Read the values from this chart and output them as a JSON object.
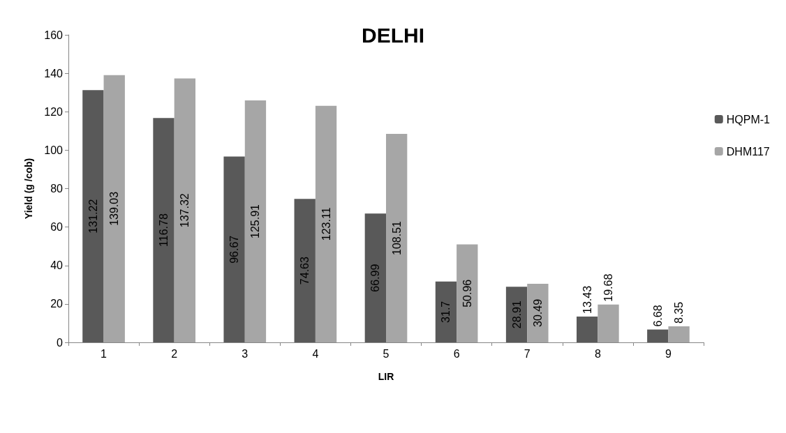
{
  "chart_data": {
    "type": "bar",
    "title": "DELHI",
    "xlabel": "LIR",
    "ylabel": "Yield (g /cob)",
    "categories": [
      "1",
      "2",
      "3",
      "4",
      "5",
      "6",
      "7",
      "8",
      "9"
    ],
    "series": [
      {
        "name": "HQPM-1",
        "color": "#595959",
        "values": [
          131.22,
          116.78,
          96.67,
          74.63,
          66.99,
          31.7,
          28.91,
          13.43,
          6.68
        ]
      },
      {
        "name": "DHM117",
        "color": "#a6a6a6",
        "values": [
          139.03,
          137.32,
          125.91,
          123.11,
          108.51,
          50.96,
          30.49,
          19.68,
          8.35
        ]
      }
    ],
    "ylim": [
      0,
      160
    ],
    "yticks": [
      0,
      20,
      40,
      60,
      80,
      100,
      120,
      140,
      160
    ],
    "grid": false,
    "legend": "top right",
    "data_labels": true
  }
}
